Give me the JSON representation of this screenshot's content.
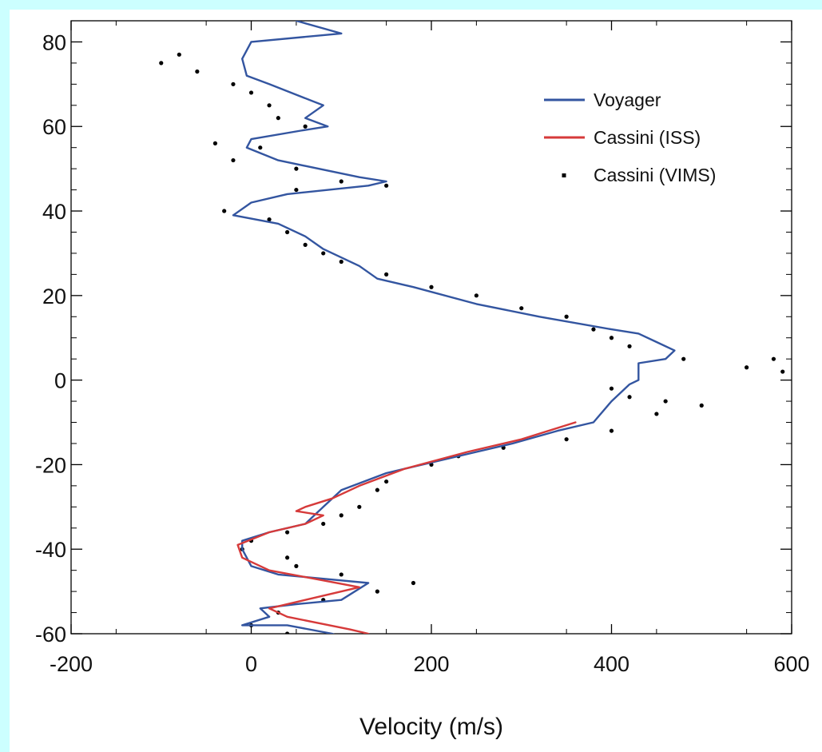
{
  "chart_data": {
    "type": "line",
    "xlabel": "Velocity (m/s)",
    "ylabel": "",
    "xlim": [
      -200,
      600
    ],
    "ylim": [
      -60,
      85
    ],
    "x_ticks": [
      -200,
      0,
      200,
      400,
      600
    ],
    "y_ticks": [
      80,
      60,
      40,
      20,
      0,
      -20,
      -40,
      -60
    ],
    "x_tick_labels": [
      "-200",
      "0",
      "200",
      "400",
      "600"
    ],
    "y_tick_labels": [
      "80",
      "60",
      "40",
      "20",
      "0",
      "-20",
      "-40",
      "-60"
    ],
    "grid": false,
    "legend_position": "top-right",
    "legend": [
      "Voyager",
      "Cassini (ISS)",
      "Cassini (VIMS)"
    ],
    "series": [
      {
        "name": "Voyager",
        "style": "line",
        "color": "#3355a0",
        "points": [
          [
            50,
            85
          ],
          [
            100,
            82
          ],
          [
            0,
            80
          ],
          [
            -10,
            76
          ],
          [
            -5,
            72
          ],
          [
            20,
            70
          ],
          [
            80,
            65
          ],
          [
            60,
            62
          ],
          [
            85,
            60
          ],
          [
            55,
            59
          ],
          [
            0,
            57
          ],
          [
            -5,
            55
          ],
          [
            30,
            52
          ],
          [
            120,
            48
          ],
          [
            150,
            47
          ],
          [
            130,
            46
          ],
          [
            40,
            44
          ],
          [
            0,
            42
          ],
          [
            -20,
            39
          ],
          [
            30,
            37
          ],
          [
            60,
            34
          ],
          [
            80,
            31
          ],
          [
            120,
            27
          ],
          [
            140,
            24
          ],
          [
            180,
            22
          ],
          [
            250,
            18
          ],
          [
            320,
            15
          ],
          [
            400,
            12
          ],
          [
            430,
            11
          ],
          [
            450,
            9
          ],
          [
            470,
            7
          ],
          [
            460,
            5
          ],
          [
            430,
            4
          ],
          [
            430,
            0
          ],
          [
            420,
            -1
          ],
          [
            400,
            -5
          ],
          [
            380,
            -10
          ],
          [
            340,
            -12
          ],
          [
            290,
            -15
          ],
          [
            250,
            -17
          ],
          [
            150,
            -22
          ],
          [
            100,
            -26
          ],
          [
            80,
            -30
          ],
          [
            70,
            -32
          ],
          [
            60,
            -34
          ],
          [
            20,
            -36
          ],
          [
            -10,
            -38
          ],
          [
            -10,
            -40
          ],
          [
            0,
            -44
          ],
          [
            30,
            -46
          ],
          [
            80,
            -47
          ],
          [
            130,
            -48
          ],
          [
            100,
            -52
          ],
          [
            50,
            -53
          ],
          [
            10,
            -54
          ],
          [
            20,
            -56
          ],
          [
            -10,
            -58
          ],
          [
            40,
            -58
          ],
          [
            90,
            -60
          ],
          [
            100,
            -61
          ]
        ]
      },
      {
        "name": "Cassini (ISS)",
        "style": "line",
        "color": "#d63a3a",
        "points": [
          [
            360,
            -10
          ],
          [
            300,
            -14
          ],
          [
            240,
            -17
          ],
          [
            170,
            -21
          ],
          [
            120,
            -25
          ],
          [
            90,
            -28
          ],
          [
            60,
            -30
          ],
          [
            50,
            -31
          ],
          [
            80,
            -32
          ],
          [
            60,
            -34
          ],
          [
            20,
            -36
          ],
          [
            -15,
            -39
          ],
          [
            -10,
            -42
          ],
          [
            20,
            -45
          ],
          [
            70,
            -47
          ],
          [
            120,
            -49
          ],
          [
            60,
            -52
          ],
          [
            20,
            -54
          ],
          [
            40,
            -56
          ],
          [
            110,
            -59
          ],
          [
            130,
            -60
          ]
        ]
      },
      {
        "name": "Cassini (VIMS)",
        "style": "markers",
        "color": "#000000",
        "points": [
          [
            -100,
            75
          ],
          [
            -80,
            77
          ],
          [
            -60,
            73
          ],
          [
            -20,
            70
          ],
          [
            0,
            68
          ],
          [
            20,
            65
          ],
          [
            30,
            62
          ],
          [
            60,
            60
          ],
          [
            -40,
            56
          ],
          [
            -20,
            52
          ],
          [
            10,
            55
          ],
          [
            50,
            50
          ],
          [
            100,
            47
          ],
          [
            150,
            46
          ],
          [
            50,
            45
          ],
          [
            -30,
            40
          ],
          [
            20,
            38
          ],
          [
            40,
            35
          ],
          [
            60,
            32
          ],
          [
            80,
            30
          ],
          [
            100,
            28
          ],
          [
            150,
            25
          ],
          [
            200,
            22
          ],
          [
            250,
            20
          ],
          [
            300,
            17
          ],
          [
            350,
            15
          ],
          [
            380,
            12
          ],
          [
            400,
            10
          ],
          [
            420,
            8
          ],
          [
            480,
            5
          ],
          [
            550,
            3
          ],
          [
            590,
            2
          ],
          [
            580,
            5
          ],
          [
            400,
            -2
          ],
          [
            420,
            -4
          ],
          [
            460,
            -5
          ],
          [
            500,
            -6
          ],
          [
            450,
            -8
          ],
          [
            400,
            -12
          ],
          [
            350,
            -14
          ],
          [
            280,
            -16
          ],
          [
            230,
            -18
          ],
          [
            200,
            -20
          ],
          [
            150,
            -24
          ],
          [
            140,
            -26
          ],
          [
            120,
            -30
          ],
          [
            100,
            -32
          ],
          [
            80,
            -34
          ],
          [
            40,
            -36
          ],
          [
            0,
            -38
          ],
          [
            -10,
            -40
          ],
          [
            40,
            -42
          ],
          [
            50,
            -44
          ],
          [
            100,
            -46
          ],
          [
            180,
            -48
          ],
          [
            140,
            -50
          ],
          [
            80,
            -52
          ],
          [
            30,
            -55
          ],
          [
            0,
            -58
          ],
          [
            40,
            -60
          ]
        ]
      }
    ]
  }
}
